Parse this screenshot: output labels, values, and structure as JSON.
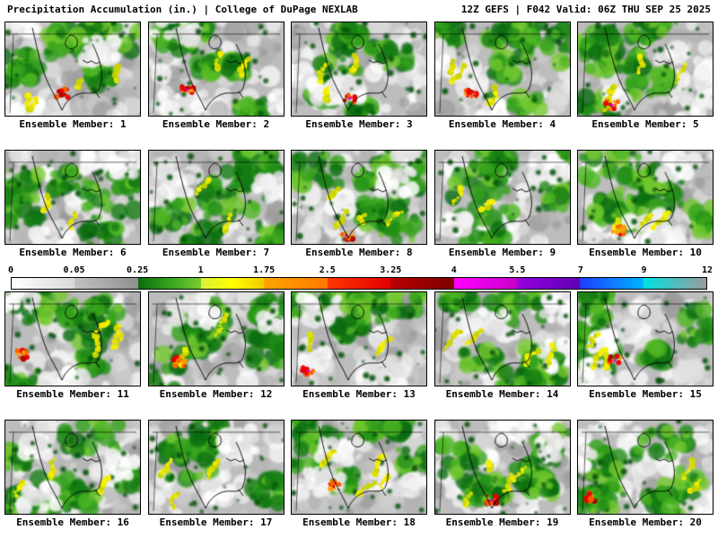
{
  "header": {
    "left": "Precipitation Accumulation (in.) | College of DuPage NEXLAB",
    "right": "12Z GEFS | F042 Valid: 06Z THU SEP 25 2025"
  },
  "colorbar": {
    "ticks": [
      "0",
      "0.05",
      "0.25",
      "1",
      "1.75",
      "2.5",
      "3.25",
      "4",
      "5.5",
      "7",
      "9",
      "12"
    ],
    "segments": [
      {
        "from": "0",
        "to": "0.05",
        "colors": [
          "#ffffff",
          "#d9d9d9"
        ]
      },
      {
        "from": "0.05",
        "to": "0.25",
        "colors": [
          "#c2c2c2",
          "#8f8f8f"
        ]
      },
      {
        "from": "0.25",
        "to": "1",
        "colors": [
          "#0d6b10",
          "#35a31c",
          "#7bcd33"
        ]
      },
      {
        "from": "1",
        "to": "1.75",
        "colors": [
          "#d9ef3a",
          "#ffff00",
          "#f0c800"
        ]
      },
      {
        "from": "1.75",
        "to": "2.5",
        "colors": [
          "#ffa500",
          "#ff7800"
        ]
      },
      {
        "from": "2.5",
        "to": "3.25",
        "colors": [
          "#ff3700",
          "#e00000"
        ]
      },
      {
        "from": "3.25",
        "to": "4",
        "colors": [
          "#b80000",
          "#7d0000"
        ]
      },
      {
        "from": "4",
        "to": "5.5",
        "colors": [
          "#ff00ff",
          "#c800c8"
        ]
      },
      {
        "from": "5.5",
        "to": "7",
        "colors": [
          "#9600e1",
          "#5f00b4"
        ]
      },
      {
        "from": "7",
        "to": "9",
        "colors": [
          "#1e3cff",
          "#00b4ff"
        ]
      },
      {
        "from": "9",
        "to": "12",
        "colors": [
          "#00e1e1",
          "#9b9b9b"
        ]
      }
    ]
  },
  "members": [
    {
      "id": 1,
      "label": "Ensemble Member: 1"
    },
    {
      "id": 2,
      "label": "Ensemble Member: 2"
    },
    {
      "id": 3,
      "label": "Ensemble Member: 3"
    },
    {
      "id": 4,
      "label": "Ensemble Member: 4"
    },
    {
      "id": 5,
      "label": "Ensemble Member: 5"
    },
    {
      "id": 6,
      "label": "Ensemble Member: 6"
    },
    {
      "id": 7,
      "label": "Ensemble Member: 7"
    },
    {
      "id": 8,
      "label": "Ensemble Member: 8"
    },
    {
      "id": 9,
      "label": "Ensemble Member: 9"
    },
    {
      "id": 10,
      "label": "Ensemble Member: 10"
    },
    {
      "id": 11,
      "label": "Ensemble Member: 11"
    },
    {
      "id": 12,
      "label": "Ensemble Member: 12"
    },
    {
      "id": 13,
      "label": "Ensemble Member: 13"
    },
    {
      "id": 14,
      "label": "Ensemble Member: 14"
    },
    {
      "id": 15,
      "label": "Ensemble Member: 15"
    },
    {
      "id": 16,
      "label": "Ensemble Member: 16"
    },
    {
      "id": 17,
      "label": "Ensemble Member: 17"
    },
    {
      "id": 18,
      "label": "Ensemble Member: 18"
    },
    {
      "id": 19,
      "label": "Ensemble Member: 19"
    },
    {
      "id": 20,
      "label": "Ensemble Member: 20"
    }
  ]
}
